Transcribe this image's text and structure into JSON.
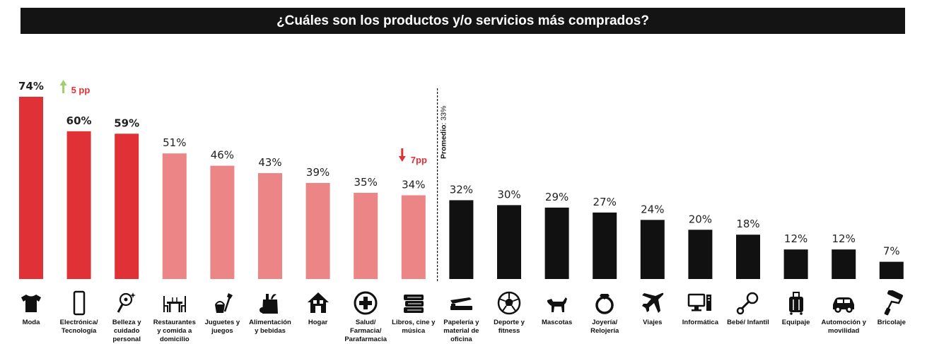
{
  "title": "¿Cuáles son los productos y/o servicios más comprados?",
  "colors": {
    "top": "#e03137",
    "mid": "#ec8585",
    "bottom": "#111111",
    "up_arrow": "#9fce6a",
    "down_arrow": "#e03137",
    "change_text": "#e03137"
  },
  "average": {
    "label_bold": "Promedio",
    "label_rest": ": 33%",
    "value": 33
  },
  "annotations": [
    {
      "category": "Electrónica/ Tecnología",
      "direction": "up",
      "text": "5 pp"
    },
    {
      "category": "Libros, cine y música",
      "direction": "down",
      "text": "7pp"
    }
  ],
  "icons": [
    "tshirt-icon",
    "smartphone-icon",
    "beauty-mirror-icon",
    "restaurant-table-icon",
    "toys-icon",
    "grocery-bag-icon",
    "house-icon",
    "medical-cross-icon",
    "books-icon",
    "stapler-icon",
    "soccer-ball-icon",
    "dog-icon",
    "ring-icon",
    "airplane-icon",
    "computer-icon",
    "baby-rattle-icon",
    "suitcase-icon",
    "car-icon",
    "paint-roller-icon"
  ],
  "chart_data": {
    "type": "bar",
    "title": "¿Cuáles son los productos y/o servicios más comprados?",
    "categories": [
      "Moda",
      "Electrónica/ Tecnología",
      "Belleza y cuidado personal",
      "Restaurantes y comida a domicilio",
      "Juguetes y juegos",
      "Alimentación y bebidas",
      "Hogar",
      "Salud/ Farmacia/ Parafarmacia",
      "Libros, cine y música",
      "Papelería y material de oficina",
      "Deporte y fitness",
      "Mascotas",
      "Joyería/ Relojería",
      "Viajes",
      "Informática",
      "Bebé/ Infantil",
      "Equipaje",
      "Automoción y movilidad",
      "Bricolaje"
    ],
    "label_lines": [
      [
        "Moda"
      ],
      [
        "Electrónica/",
        "Tecnología"
      ],
      [
        "Belleza y",
        "cuidado",
        "personal"
      ],
      [
        "Restaurantes",
        "y comida a",
        "domicilio"
      ],
      [
        "Juguetes y",
        "juegos"
      ],
      [
        "Alimentación",
        "y bebidas"
      ],
      [
        "Hogar"
      ],
      [
        "Salud/",
        "Farmacia/",
        "Parafarmacia"
      ],
      [
        "Libros, cine y",
        "música"
      ],
      [
        "Papelería y",
        "material de",
        "oficina"
      ],
      [
        "Deporte y",
        "fitness"
      ],
      [
        "Mascotas"
      ],
      [
        "Joyería/",
        "Relojería"
      ],
      [
        "Viajes"
      ],
      [
        "Informática"
      ],
      [
        "Bebé/ Infantil"
      ],
      [
        "Equipaje"
      ],
      [
        "Automoción y",
        "movilidad"
      ],
      [
        "Bricolaje"
      ]
    ],
    "values": [
      74,
      60,
      59,
      51,
      46,
      43,
      39,
      35,
      34,
      32,
      30,
      29,
      27,
      24,
      20,
      18,
      12,
      12,
      7
    ],
    "value_labels": [
      "74%",
      "60%",
      "59%",
      "51%",
      "46%",
      "43%",
      "39%",
      "35%",
      "34%",
      "32%",
      "30%",
      "29%",
      "27%",
      "24%",
      "20%",
      "18%",
      "12%",
      "12%",
      "7%"
    ],
    "groups": [
      "top",
      "top",
      "top",
      "mid",
      "mid",
      "mid",
      "mid",
      "mid",
      "mid",
      "bottom",
      "bottom",
      "bottom",
      "bottom",
      "bottom",
      "bottom",
      "bottom",
      "bottom",
      "bottom",
      "bottom"
    ],
    "ylim": [
      0,
      74
    ],
    "grid": false,
    "legend": "none"
  }
}
